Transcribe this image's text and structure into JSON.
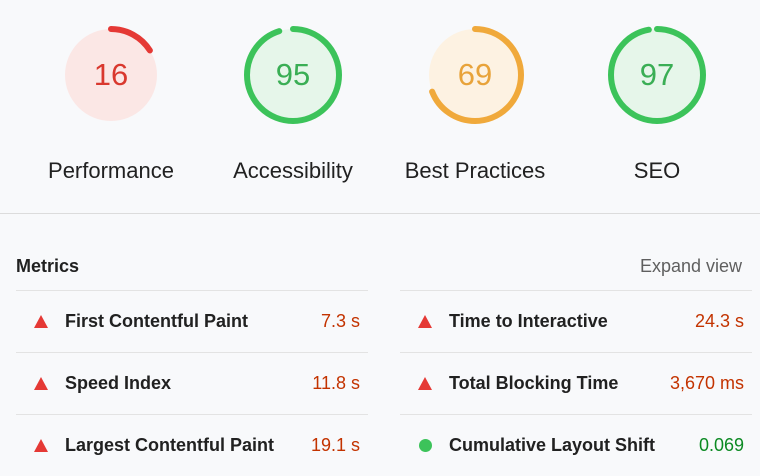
{
  "colors": {
    "fail": "#e53935",
    "average": "#f0a93b",
    "pass": "#3cc35a",
    "fail_text": "#c33300",
    "pass_text": "#0c8a23"
  },
  "gauges": [
    {
      "label": "Performance",
      "score": 16,
      "status": "fail"
    },
    {
      "label": "Accessibility",
      "score": 95,
      "status": "pass"
    },
    {
      "label": "Best Practices",
      "score": 69,
      "status": "average"
    },
    {
      "label": "SEO",
      "score": 97,
      "status": "pass"
    }
  ],
  "metrics": {
    "title": "Metrics",
    "expand_label": "Expand view",
    "left": [
      {
        "name": "First Contentful Paint",
        "value": "7.3 s",
        "status": "fail",
        "icon": "triangle-icon"
      },
      {
        "name": "Speed Index",
        "value": "11.8 s",
        "status": "fail",
        "icon": "triangle-icon"
      },
      {
        "name": "Largest Contentful Paint",
        "value": "19.1 s",
        "status": "fail",
        "icon": "triangle-icon"
      }
    ],
    "right": [
      {
        "name": "Time to Interactive",
        "value": "24.3 s",
        "status": "fail",
        "icon": "triangle-icon"
      },
      {
        "name": "Total Blocking Time",
        "value": "3,670 ms",
        "status": "fail",
        "icon": "triangle-icon"
      },
      {
        "name": "Cumulative Layout Shift",
        "value": "0.069",
        "status": "pass",
        "icon": "circle-icon"
      }
    ]
  }
}
